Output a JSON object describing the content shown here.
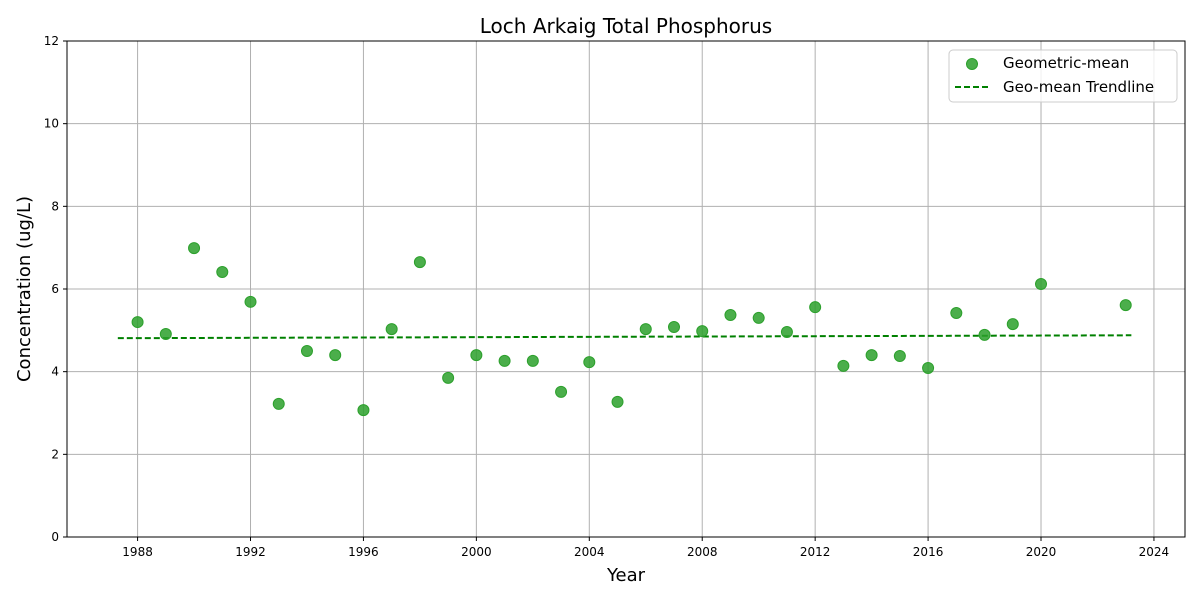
{
  "chart_data": {
    "type": "scatter",
    "title": "Loch Arkaig Total Phosphorus",
    "xlabel": "Year",
    "ylabel": "Concentration (ug/L)",
    "xlim": [
      1985.5,
      2025.1
    ],
    "ylim": [
      0,
      12
    ],
    "grid": true,
    "legend_position": "upper right",
    "xticks": [
      1988,
      1992,
      1996,
      2000,
      2004,
      2008,
      2012,
      2016,
      2020,
      2024
    ],
    "yticks": [
      0,
      2,
      4,
      6,
      8,
      10,
      12
    ],
    "series": [
      {
        "name": "Geometric-mean",
        "kind": "scatter",
        "color": "#2ca02c",
        "x": [
          1988,
          1989,
          1990,
          1991,
          1992,
          1993,
          1994,
          1995,
          1996,
          1997,
          1998,
          1999,
          2000,
          2001,
          2002,
          2003,
          2004,
          2005,
          2006,
          2007,
          2008,
          2009,
          2010,
          2011,
          2012,
          2013,
          2014,
          2015,
          2016,
          2017,
          2018,
          2019,
          2020,
          2023
        ],
        "y": [
          5.2,
          4.91,
          6.99,
          6.41,
          5.69,
          3.22,
          4.5,
          4.4,
          3.07,
          5.03,
          6.65,
          3.85,
          4.4,
          4.26,
          4.26,
          3.51,
          4.23,
          3.27,
          5.03,
          5.08,
          4.98,
          5.37,
          5.3,
          4.96,
          5.56,
          4.14,
          4.4,
          4.38,
          4.09,
          5.42,
          4.89,
          5.15,
          6.12,
          5.61
        ]
      },
      {
        "name": "Geo-mean Trendline",
        "kind": "line",
        "style": "dashed",
        "color": "#008000",
        "x": [
          1987.3,
          2023.2
        ],
        "y": [
          4.81,
          4.88
        ]
      }
    ]
  }
}
